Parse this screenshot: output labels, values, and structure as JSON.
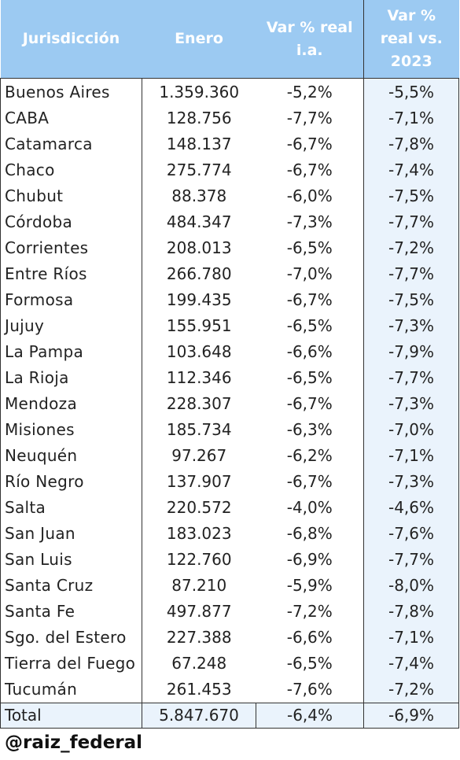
{
  "headers": {
    "jurisdiccion": "Jurisdicción",
    "enero": "Enero",
    "var_ia_line1": "Var % real",
    "var_ia_line2": "i.a.",
    "var_2023_line1": "Var %",
    "var_2023_line2": "real vs.",
    "var_2023_line3": "2023"
  },
  "rows": [
    {
      "name": "Buenos Aires",
      "enero": "1.359.360",
      "var_ia": "-5,2%",
      "var_2023": "-5,5%"
    },
    {
      "name": "CABA",
      "enero": "128.756",
      "var_ia": "-7,7%",
      "var_2023": "-7,1%"
    },
    {
      "name": "Catamarca",
      "enero": "148.137",
      "var_ia": "-6,7%",
      "var_2023": "-7,8%"
    },
    {
      "name": "Chaco",
      "enero": "275.774",
      "var_ia": "-6,7%",
      "var_2023": "-7,4%"
    },
    {
      "name": "Chubut",
      "enero": "88.378",
      "var_ia": "-6,0%",
      "var_2023": "-7,5%"
    },
    {
      "name": "Córdoba",
      "enero": "484.347",
      "var_ia": "-7,3%",
      "var_2023": "-7,7%"
    },
    {
      "name": "Corrientes",
      "enero": "208.013",
      "var_ia": "-6,5%",
      "var_2023": "-7,2%"
    },
    {
      "name": "Entre Ríos",
      "enero": "266.780",
      "var_ia": "-7,0%",
      "var_2023": "-7,7%"
    },
    {
      "name": "Formosa",
      "enero": "199.435",
      "var_ia": "-6,7%",
      "var_2023": "-7,5%"
    },
    {
      "name": "Jujuy",
      "enero": "155.951",
      "var_ia": "-6,5%",
      "var_2023": "-7,3%"
    },
    {
      "name": "La Pampa",
      "enero": "103.648",
      "var_ia": "-6,6%",
      "var_2023": "-7,9%"
    },
    {
      "name": "La Rioja",
      "enero": "112.346",
      "var_ia": "-6,5%",
      "var_2023": "-7,7%"
    },
    {
      "name": "Mendoza",
      "enero": "228.307",
      "var_ia": "-6,7%",
      "var_2023": "-7,3%"
    },
    {
      "name": "Misiones",
      "enero": "185.734",
      "var_ia": "-6,3%",
      "var_2023": "-7,0%"
    },
    {
      "name": "Neuquén",
      "enero": "97.267",
      "var_ia": "-6,2%",
      "var_2023": "-7,1%"
    },
    {
      "name": "Río Negro",
      "enero": "137.907",
      "var_ia": "-6,7%",
      "var_2023": "-7,3%"
    },
    {
      "name": "Salta",
      "enero": "220.572",
      "var_ia": "-4,0%",
      "var_2023": "-4,6%"
    },
    {
      "name": "San Juan",
      "enero": "183.023",
      "var_ia": "-6,8%",
      "var_2023": "-7,6%"
    },
    {
      "name": "San Luis",
      "enero": "122.760",
      "var_ia": "-6,9%",
      "var_2023": "-7,7%"
    },
    {
      "name": "Santa Cruz",
      "enero": "87.210",
      "var_ia": "-5,9%",
      "var_2023": "-8,0%"
    },
    {
      "name": "Santa Fe",
      "enero": "497.877",
      "var_ia": "-7,2%",
      "var_2023": "-7,8%"
    },
    {
      "name": "Sgo. del Estero",
      "enero": "227.388",
      "var_ia": "-6,6%",
      "var_2023": "-7,1%"
    },
    {
      "name": "Tierra del Fuego",
      "enero": "67.248",
      "var_ia": "-6,5%",
      "var_2023": "-7,4%"
    },
    {
      "name": "Tucumán",
      "enero": "261.453",
      "var_ia": "-7,6%",
      "var_2023": "-7,2%"
    }
  ],
  "total": {
    "name": "Total",
    "enero": "5.847.670",
    "var_ia": "-6,4%",
    "var_2023": "-6,9%"
  },
  "footer": {
    "handle": "@raiz_federal"
  },
  "colors": {
    "header_bg": "#9ccaf2",
    "header_text": "#ffffff",
    "last_column_bg": "#eaf3fc",
    "border": "#333333"
  }
}
